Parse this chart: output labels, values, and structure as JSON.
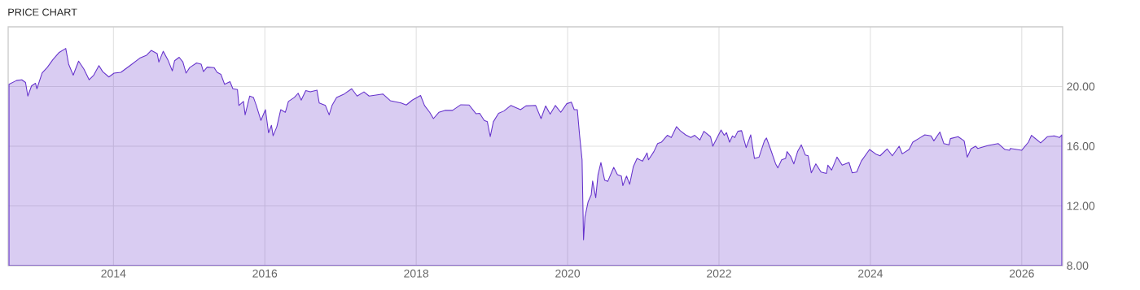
{
  "chart_data": {
    "type": "area",
    "title": "PRICE CHART",
    "x": [
      "2012-08-15",
      "2012-09-20",
      "2012-10-16",
      "2012-11-03",
      "2012-11-14",
      "2012-12-02",
      "2012-12-21",
      "2012-12-28",
      "2013-01-22",
      "2013-02-17",
      "2013-03-15",
      "2013-04-13",
      "2013-05-16",
      "2013-05-30",
      "2013-06-21",
      "2013-07-17",
      "2013-08-11",
      "2013-09-06",
      "2013-09-28",
      "2013-10-23",
      "2013-11-10",
      "2013-12-10",
      "2014-01-04",
      "2014-02-06",
      "2014-03-22",
      "2014-05-08",
      "2014-06-10",
      "2014-07-02",
      "2014-07-31",
      "2014-08-08",
      "2014-08-29",
      "2014-09-20",
      "2014-10-12",
      "2014-10-23",
      "2014-11-14",
      "2014-12-02",
      "2014-12-17",
      "2015-01-04",
      "2015-02-06",
      "2015-02-28",
      "2015-03-11",
      "2015-03-29",
      "2015-05-01",
      "2015-05-16",
      "2015-06-03",
      "2015-06-21",
      "2015-07-17",
      "2015-07-31",
      "2015-08-22",
      "2015-08-29",
      "2015-09-20",
      "2015-09-28",
      "2015-10-20",
      "2015-11-07",
      "2015-11-21",
      "2015-12-13",
      "2016-01-04",
      "2016-01-19",
      "2016-02-02",
      "2016-02-10",
      "2016-02-28",
      "2016-03-18",
      "2016-04-09",
      "2016-04-24",
      "2016-05-23",
      "2016-06-10",
      "2016-06-25",
      "2016-07-17",
      "2016-08-08",
      "2016-09-09",
      "2016-09-20",
      "2016-10-20",
      "2016-11-07",
      "2016-11-21",
      "2016-12-13",
      "2017-01-19",
      "2017-02-24",
      "2017-03-22",
      "2017-04-24",
      "2017-05-19",
      "2017-07-24",
      "2017-08-29",
      "2017-10-20",
      "2017-11-14",
      "2017-12-13",
      "2018-01-22",
      "2018-02-10",
      "2018-03-07",
      "2018-03-25",
      "2018-04-20",
      "2018-05-19",
      "2018-06-25",
      "2018-08-04",
      "2018-09-13",
      "2018-10-16",
      "2018-11-03",
      "2018-11-25",
      "2018-12-10",
      "2018-12-24",
      "2019-01-08",
      "2019-02-02",
      "2019-02-28",
      "2019-04-02",
      "2019-05-19",
      "2019-06-14",
      "2019-07-31",
      "2019-08-26",
      "2019-09-17",
      "2019-10-09",
      "2019-11-03",
      "2019-11-29",
      "2019-12-28",
      "2020-01-19",
      "2020-02-02",
      "2020-02-17",
      "2020-02-28",
      "2020-03-11",
      "2020-03-18",
      "2020-03-25",
      "2020-04-09",
      "2020-04-24",
      "2020-05-01",
      "2020-05-16",
      "2020-05-27",
      "2020-06-10",
      "2020-06-28",
      "2020-07-13",
      "2020-08-11",
      "2020-08-29",
      "2020-09-17",
      "2020-09-24",
      "2020-10-12",
      "2020-10-27",
      "2020-11-14",
      "2020-12-02",
      "2020-12-28",
      "2021-01-19",
      "2021-01-26",
      "2021-02-21",
      "2021-03-11",
      "2021-03-29",
      "2021-04-27",
      "2021-05-16",
      "2021-06-10",
      "2021-06-28",
      "2021-07-24",
      "2021-08-18",
      "2021-09-06",
      "2021-10-01",
      "2021-10-20",
      "2021-11-21",
      "2021-12-02",
      "2021-12-21",
      "2022-01-11",
      "2022-01-26",
      "2022-02-06",
      "2022-02-21",
      "2022-03-07",
      "2022-03-18",
      "2022-04-02",
      "2022-04-20",
      "2022-05-01",
      "2022-05-12",
      "2022-06-03",
      "2022-06-21",
      "2022-07-13",
      "2022-08-08",
      "2022-08-18",
      "2022-09-06",
      "2022-10-01",
      "2022-10-12",
      "2022-10-30",
      "2022-11-18",
      "2022-11-25",
      "2022-12-13",
      "2022-12-28",
      "2023-01-15",
      "2023-02-02",
      "2023-02-21",
      "2023-03-07",
      "2023-03-22",
      "2023-04-13",
      "2023-05-08",
      "2023-06-03",
      "2023-06-10",
      "2023-06-28",
      "2023-07-24",
      "2023-08-18",
      "2023-09-20",
      "2023-10-05",
      "2023-10-27",
      "2023-11-18",
      "2023-12-28",
      "2024-01-30",
      "2024-02-17",
      "2024-03-22",
      "2024-04-16",
      "2024-05-19",
      "2024-06-03",
      "2024-07-06",
      "2024-07-24",
      "2024-08-26",
      "2024-09-20",
      "2024-10-20",
      "2024-11-03",
      "2024-12-02",
      "2024-12-21",
      "2025-01-15",
      "2025-01-22",
      "2025-02-28",
      "2025-03-29",
      "2025-04-13",
      "2025-05-01",
      "2025-05-23",
      "2025-06-03",
      "2025-07-20",
      "2025-09-09",
      "2025-10-12",
      "2025-11-03",
      "2025-11-07",
      "2026-01-01",
      "2026-02-02",
      "2026-02-17",
      "2026-04-02",
      "2026-05-05",
      "2026-06-06",
      "2026-07-02",
      "2026-07-13"
    ],
    "series": [
      {
        "color": "#6633cc",
        "values": [
          20.15,
          20.4,
          20.45,
          20.27,
          19.36,
          20.04,
          20.22,
          19.85,
          20.9,
          21.3,
          21.8,
          22.27,
          22.55,
          21.5,
          20.76,
          21.7,
          21.18,
          20.45,
          20.76,
          21.4,
          21.0,
          20.64,
          20.9,
          20.95,
          21.4,
          21.9,
          22.1,
          22.42,
          22.2,
          21.64,
          22.36,
          21.8,
          21.05,
          21.73,
          21.96,
          21.64,
          20.9,
          21.27,
          21.58,
          21.5,
          21.0,
          21.3,
          21.27,
          20.95,
          20.82,
          20.15,
          20.33,
          19.85,
          19.8,
          18.73,
          19.0,
          18.1,
          19.36,
          19.27,
          18.73,
          17.73,
          18.45,
          16.9,
          17.4,
          16.7,
          17.3,
          18.45,
          18.27,
          19.0,
          19.27,
          19.55,
          19.09,
          19.73,
          19.64,
          19.76,
          18.9,
          18.73,
          18.1,
          18.73,
          19.27,
          19.5,
          19.85,
          19.36,
          19.64,
          19.36,
          19.5,
          19.05,
          18.9,
          18.76,
          19.09,
          19.4,
          18.73,
          18.27,
          17.85,
          18.27,
          18.4,
          18.4,
          18.78,
          18.76,
          18.18,
          18.2,
          17.73,
          17.64,
          16.64,
          17.64,
          18.2,
          18.36,
          18.73,
          18.45,
          18.7,
          18.73,
          17.85,
          18.7,
          18.15,
          18.73,
          18.27,
          18.85,
          18.95,
          18.45,
          18.45,
          16.73,
          15.09,
          9.73,
          11.27,
          12.27,
          12.73,
          13.67,
          12.55,
          14.09,
          14.91,
          13.73,
          13.64,
          14.58,
          14.09,
          14.0,
          13.36,
          14.0,
          13.45,
          14.64,
          15.18,
          15.0,
          15.55,
          15.09,
          15.64,
          16.18,
          16.27,
          16.73,
          16.58,
          17.31,
          17.04,
          16.76,
          16.58,
          16.73,
          16.42,
          17.0,
          16.64,
          16.0,
          16.51,
          17.09,
          16.73,
          16.91,
          16.27,
          16.69,
          16.58,
          17.0,
          17.04,
          16.45,
          15.91,
          16.76,
          15.18,
          15.27,
          16.36,
          16.55,
          15.82,
          14.82,
          14.55,
          15.09,
          15.18,
          15.64,
          15.31,
          14.82,
          15.64,
          16.09,
          15.42,
          15.36,
          14.22,
          14.82,
          14.27,
          14.18,
          14.73,
          14.4,
          15.27,
          14.73,
          14.91,
          14.22,
          14.27,
          15.0,
          15.78,
          15.45,
          15.36,
          15.82,
          15.36,
          16.0,
          15.49,
          15.78,
          16.27,
          16.55,
          16.76,
          16.69,
          16.36,
          16.95,
          16.18,
          16.09,
          16.51,
          16.64,
          16.36,
          15.27,
          15.82,
          16.0,
          15.85,
          16.04,
          16.18,
          15.78,
          15.73,
          15.85,
          15.73,
          16.27,
          16.73,
          16.22,
          16.64,
          16.69,
          16.58,
          16.76
        ]
      }
    ],
    "xlim": [
      "2012-08-11",
      "2026-07-17"
    ],
    "xticks": [
      "2014",
      "2016",
      "2018",
      "2020",
      "2022",
      "2024",
      "2026"
    ],
    "ylim": [
      8,
      24
    ],
    "yticks": [
      {
        "value": 8,
        "label": "8.00"
      },
      {
        "value": 12,
        "label": "12.00"
      },
      {
        "value": 16,
        "label": "16.00"
      },
      {
        "value": 20,
        "label": "20.00"
      }
    ],
    "grid": true
  }
}
